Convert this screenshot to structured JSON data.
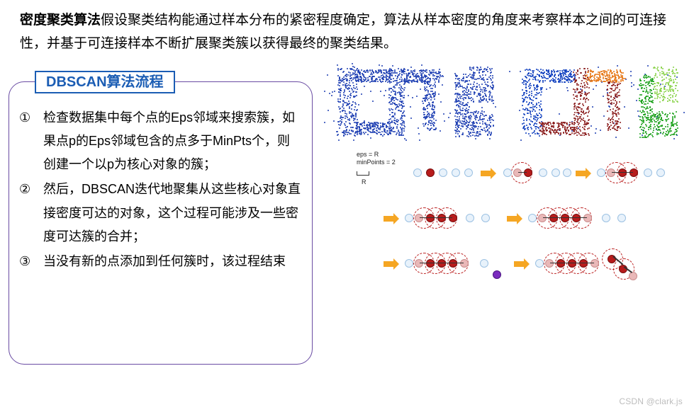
{
  "intro": {
    "term": "密度聚类算法",
    "body": "假设聚类结构能通过样本分布的紧密程度确定，算法从样本密度的角度来考察样本之间的可连接性，并基于可连接样本不断扩展聚类簇以获得最终的聚类结果。"
  },
  "algo": {
    "title": "DBSCAN算法流程",
    "steps": [
      {
        "num": "①",
        "text": "检查数据集中每个点的Eps邻域来搜索簇，如果点p的Eps邻域包含的点多于MinPts个，则创建一个以p为核心对象的簇；"
      },
      {
        "num": "②",
        "text": "然后，DBSCAN迭代地聚集从这些核心对象直接密度可达的对象，这个过程可能涉及一些密度可达簇的合并；"
      },
      {
        "num": "③",
        "text": "当没有新的点添加到任何簇时，该过程结束"
      }
    ]
  },
  "params": {
    "line1": "eps = R",
    "line2": "minPoints = 2",
    "r_label": "R"
  },
  "scatter_left": {
    "type": "scatter",
    "color": "#1e3fb3",
    "background": "#ffffff",
    "dot_size": 2
  },
  "scatter_right": {
    "type": "scatter",
    "colors": {
      "c1": "#0f3fbf",
      "c2": "#8a1b1b",
      "c3": "#e77817",
      "c4": "#18a018",
      "c5": "#8ad24a",
      "noise": "#1e3fb3"
    },
    "background": "#ffffff",
    "dot_size": 2
  },
  "step_diagram": {
    "type": "flowchart",
    "node_colors": {
      "core": "#b71c1c",
      "reachable": "#e9b8b8",
      "unvisited": "#e8f2fb",
      "new": "#7b2cbf"
    },
    "ring_color": "#b22222",
    "arrow_color": "#f5a623",
    "edge_color": "#333333"
  },
  "watermark": "CSDN @clark.js"
}
